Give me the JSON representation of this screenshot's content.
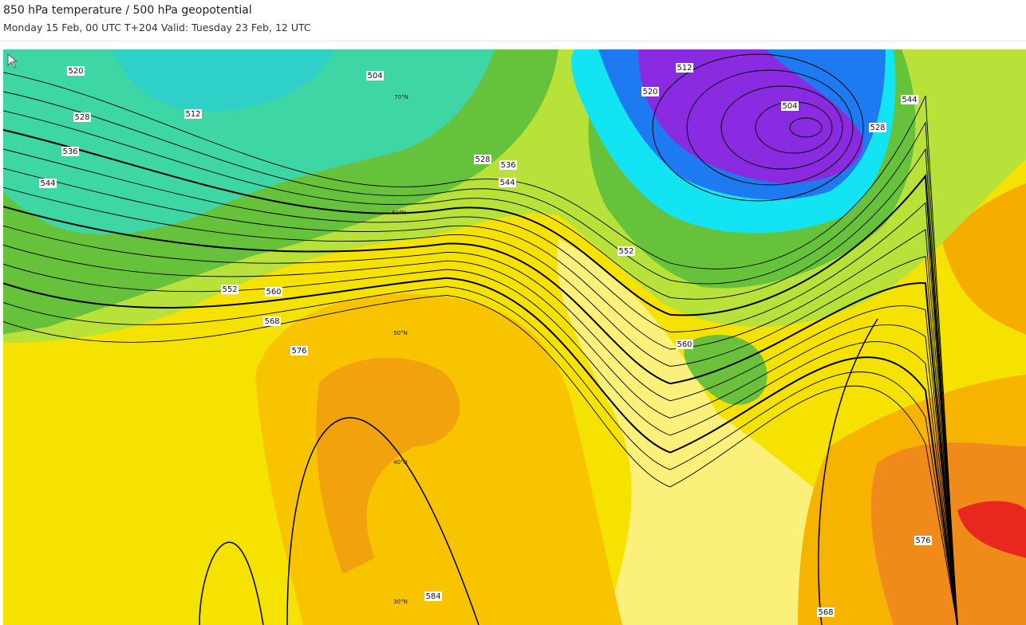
{
  "header": {
    "title": "850 hPa temperature / 500 hPa geopotential",
    "subtitle": "Monday 15 Feb, 00 UTC T+204 Valid: Tuesday 23 Feb, 12 UTC"
  },
  "map": {
    "contour_labels": [
      "520",
      "528",
      "536",
      "544",
      "504",
      "512",
      "552",
      "560",
      "568",
      "576",
      "584",
      "528",
      "536",
      "544",
      "520",
      "512",
      "504",
      "528",
      "544",
      "552",
      "560",
      "568",
      "576"
    ],
    "latitude_labels": [
      "70°N",
      "60°N",
      "50°N",
      "40°N",
      "30°N"
    ]
  }
}
